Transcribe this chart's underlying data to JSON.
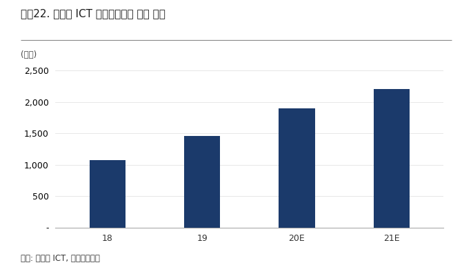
{
  "title": "그림22. 포스코 ICT 스마트팩토리 수주 추이",
  "unit_label": "(억원)",
  "categories": [
    "18",
    "19",
    "20E",
    "21E"
  ],
  "values": [
    1070,
    1460,
    1900,
    2200
  ],
  "bar_color": "#1b3a6b",
  "ylim": [
    0,
    2750
  ],
  "yticks": [
    0,
    500,
    1000,
    1500,
    2000,
    2500
  ],
  "source_text": "자료: 포스코 ICT, 하이투자증권",
  "background_color": "#ffffff",
  "title_fontsize": 11,
  "tick_fontsize": 9,
  "source_fontsize": 8.5,
  "unit_fontsize": 8.5,
  "bar_width": 0.38
}
